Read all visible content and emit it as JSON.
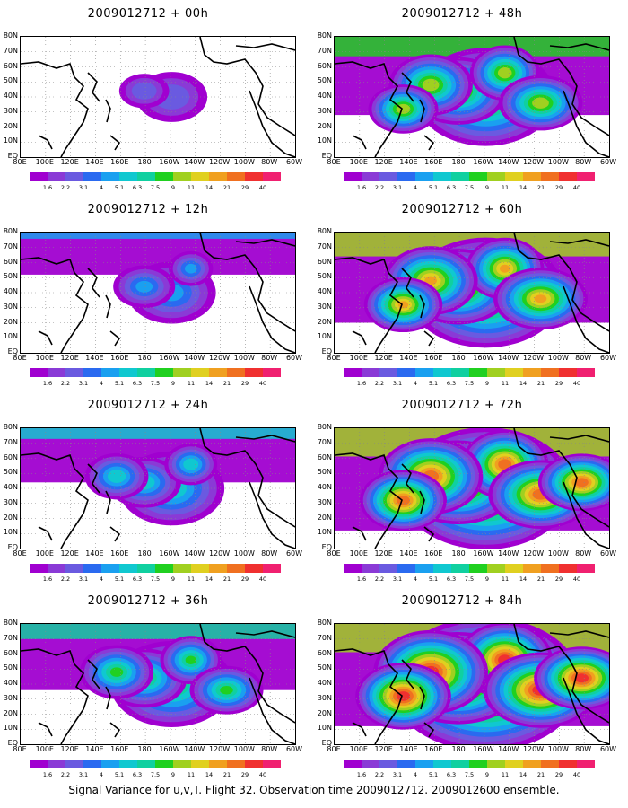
{
  "chart_data": {
    "type": "heatmap",
    "caption": "Signal Variance for u,v,T. Flight 32. Observation time 2009012712. 2009012600 ensemble.",
    "x_ticks": [
      "80E",
      "100E",
      "120E",
      "140E",
      "160E",
      "180",
      "160W",
      "140W",
      "120W",
      "100W",
      "80W",
      "60W"
    ],
    "y_ticks": [
      "80N",
      "70N",
      "60N",
      "50N",
      "40N",
      "30N",
      "20N",
      "10N",
      "EQ"
    ],
    "colorbar": {
      "levels": [
        "1.6",
        "2.2",
        "3.1",
        "4",
        "5.1",
        "6.3",
        "7.5",
        "9",
        "11",
        "14",
        "21",
        "29",
        "40"
      ],
      "colors": [
        "#a000d0",
        "#8a3ad6",
        "#6a5ae0",
        "#2a6af0",
        "#1aa0f0",
        "#10c8d0",
        "#10d0a0",
        "#20d020",
        "#a0d020",
        "#e0d020",
        "#f0a020",
        "#f07020",
        "#f03030",
        "#f02070"
      ]
    },
    "panels": [
      {
        "title": "2009012712 + 00h",
        "intensity": 0
      },
      {
        "title": "2009012712 + 12h",
        "intensity": 1
      },
      {
        "title": "2009012712 + 24h",
        "intensity": 2
      },
      {
        "title": "2009012712 + 36h",
        "intensity": 3
      },
      {
        "title": "2009012712 + 48h",
        "intensity": 4
      },
      {
        "title": "2009012712 + 60h",
        "intensity": 5
      },
      {
        "title": "2009012712 + 72h",
        "intensity": 6
      },
      {
        "title": "2009012712 + 84h",
        "intensity": 7
      }
    ]
  }
}
